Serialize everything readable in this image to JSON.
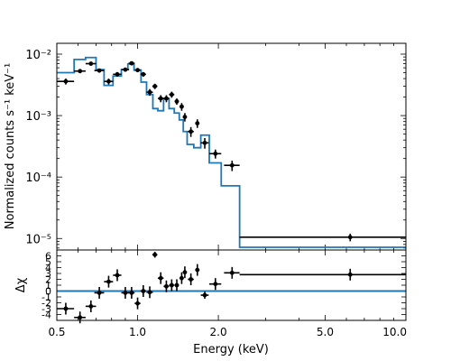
{
  "chart_data": [
    {
      "panel": "spectrum",
      "type": "scatter",
      "ylabel": "Normalized counts s⁻¹ keV⁻¹",
      "xscale": "log",
      "yscale": "log",
      "xlim": [
        0.5,
        10.0
      ],
      "ylim": [
        6.5e-06,
        0.015
      ],
      "ytick_labels": [
        "10⁻²",
        "10⁻³",
        "10⁻⁴",
        "10⁻⁵"
      ],
      "ytick_values": [
        0.01,
        0.001,
        0.0001,
        1e-05
      ],
      "data_color": "#000000",
      "model_color": "#1f77b4",
      "series": [
        {
          "kind": "data",
          "points": [
            {
              "x": 0.54,
              "xerr": [
                0.04,
                0.04
              ],
              "y": 0.0036,
              "yerr": [
                0.0004,
                0.0004
              ]
            },
            {
              "x": 0.61,
              "xerr": [
                0.03,
                0.03
              ],
              "y": 0.0053,
              "yerr": [
                0.0004,
                0.0004
              ]
            },
            {
              "x": 0.67,
              "xerr": [
                0.03,
                0.03
              ],
              "y": 0.007,
              "yerr": [
                0.0005,
                0.0005
              ]
            },
            {
              "x": 0.72,
              "xerr": [
                0.03,
                0.03
              ],
              "y": 0.0054,
              "yerr": [
                0.0004,
                0.0004
              ]
            },
            {
              "x": 0.78,
              "xerr": [
                0.03,
                0.03
              ],
              "y": 0.0036,
              "yerr": [
                0.0004,
                0.0004
              ]
            },
            {
              "x": 0.84,
              "xerr": [
                0.03,
                0.03
              ],
              "y": 0.0047,
              "yerr": [
                0.0004,
                0.0004
              ]
            },
            {
              "x": 0.9,
              "xerr": [
                0.03,
                0.03
              ],
              "y": 0.0056,
              "yerr": [
                0.0004,
                0.0004
              ]
            },
            {
              "x": 0.95,
              "xerr": [
                0.025,
                0.025
              ],
              "y": 0.0071,
              "yerr": [
                0.0005,
                0.0005
              ]
            },
            {
              "x": 1.0,
              "xerr": [
                0.025,
                0.025
              ],
              "y": 0.0055,
              "yerr": [
                0.0004,
                0.0004
              ]
            },
            {
              "x": 1.05,
              "xerr": [
                0.025,
                0.025
              ],
              "y": 0.0047,
              "yerr": [
                0.0004,
                0.0004
              ]
            },
            {
              "x": 1.11,
              "xerr": [
                0.03,
                0.03
              ],
              "y": 0.0024,
              "yerr": [
                0.0003,
                0.0003
              ]
            },
            {
              "x": 1.16,
              "xerr": [
                0.025,
                0.025
              ],
              "y": 0.003,
              "yerr": [
                0.0003,
                0.0003
              ]
            },
            {
              "x": 1.22,
              "xerr": [
                0.03,
                0.03
              ],
              "y": 0.0019,
              "yerr": [
                0.00025,
                0.00025
              ]
            },
            {
              "x": 1.28,
              "xerr": [
                0.03,
                0.03
              ],
              "y": 0.0019,
              "yerr": [
                0.00025,
                0.00025
              ]
            },
            {
              "x": 1.34,
              "xerr": [
                0.03,
                0.03
              ],
              "y": 0.0022,
              "yerr": [
                0.00025,
                0.00025
              ]
            },
            {
              "x": 1.4,
              "xerr": [
                0.025,
                0.025
              ],
              "y": 0.0017,
              "yerr": [
                0.0002,
                0.0002
              ]
            },
            {
              "x": 1.46,
              "xerr": [
                0.025,
                0.025
              ],
              "y": 0.0014,
              "yerr": [
                0.0002,
                0.0002
              ]
            },
            {
              "x": 1.5,
              "xerr": [
                0.025,
                0.025
              ],
              "y": 0.00095,
              "yerr": [
                0.00015,
                0.00015
              ]
            },
            {
              "x": 1.58,
              "xerr": [
                0.04,
                0.04
              ],
              "y": 0.00055,
              "yerr": [
                0.0001,
                0.0001
              ]
            },
            {
              "x": 1.67,
              "xerr": [
                0.03,
                0.03
              ],
              "y": 0.00075,
              "yerr": [
                0.00012,
                0.00012
              ]
            },
            {
              "x": 1.78,
              "xerr": [
                0.06,
                0.06
              ],
              "y": 0.00036,
              "yerr": [
                7e-05,
                7e-05
              ]
            },
            {
              "x": 1.95,
              "xerr": [
                0.1,
                0.1
              ],
              "y": 0.00024,
              "yerr": [
                4e-05,
                4e-05
              ]
            },
            {
              "x": 2.25,
              "xerr": [
                0.15,
                0.15
              ],
              "y": 0.000155,
              "yerr": [
                3e-05,
                3e-05
              ]
            },
            {
              "x": 6.2,
              "xerr": [
                3.8,
                3.8
              ],
              "y": 1.05e-05,
              "yerr": [
                1.5e-06,
                1.5e-06
              ]
            }
          ]
        },
        {
          "kind": "model-step",
          "edges": [
            0.5,
            0.58,
            0.64,
            0.7,
            0.75,
            0.81,
            0.87,
            0.92,
            0.97,
            1.03,
            1.08,
            1.14,
            1.19,
            1.25,
            1.31,
            1.37,
            1.43,
            1.48,
            1.53,
            1.62,
            1.72,
            1.85,
            2.05,
            2.4,
            10.0
          ],
          "values": [
            0.005,
            0.0082,
            0.0088,
            0.0056,
            0.0031,
            0.0044,
            0.0056,
            0.0069,
            0.0055,
            0.0035,
            0.0022,
            0.0013,
            0.0012,
            0.0019,
            0.0013,
            0.0011,
            0.00085,
            0.00055,
            0.00034,
            0.0003,
            0.00048,
            0.00017,
            7.2e-05,
            6.5e-06
          ]
        }
      ]
    },
    {
      "panel": "residuals",
      "type": "scatter",
      "xlabel": "Energy (keV)",
      "ylabel": "Δχ",
      "xscale": "log",
      "xlim": [
        0.5,
        10.0
      ],
      "ylim": [
        -5,
        7
      ],
      "ytick_values": [
        -4,
        -3,
        -2,
        -1,
        0,
        1,
        2,
        3,
        4,
        5,
        6
      ],
      "xtick_values": [
        0.5,
        1.0,
        2.0,
        5.0,
        10.0
      ],
      "xtick_labels": [
        "0.5",
        "1.0",
        "2.0",
        "5.0",
        "10.0"
      ],
      "zero_line": 0,
      "series": [
        {
          "kind": "data",
          "points": [
            {
              "x": 0.54,
              "xerr": [
                0.04,
                0.04
              ],
              "y": -3.0,
              "yerr": [
                1,
                1
              ]
            },
            {
              "x": 0.61,
              "xerr": [
                0.03,
                0.03
              ],
              "y": -4.5,
              "yerr": [
                1,
                1
              ]
            },
            {
              "x": 0.67,
              "xerr": [
                0.03,
                0.03
              ],
              "y": -2.6,
              "yerr": [
                1,
                1
              ]
            },
            {
              "x": 0.72,
              "xerr": [
                0.03,
                0.03
              ],
              "y": -0.3,
              "yerr": [
                1,
                1
              ]
            },
            {
              "x": 0.78,
              "xerr": [
                0.03,
                0.03
              ],
              "y": 1.6,
              "yerr": [
                1,
                1
              ]
            },
            {
              "x": 0.84,
              "xerr": [
                0.03,
                0.03
              ],
              "y": 2.7,
              "yerr": [
                1,
                1
              ]
            },
            {
              "x": 0.9,
              "xerr": [
                0.03,
                0.03
              ],
              "y": -0.3,
              "yerr": [
                1,
                1
              ]
            },
            {
              "x": 0.95,
              "xerr": [
                0.025,
                0.025
              ],
              "y": -0.3,
              "yerr": [
                1,
                1
              ]
            },
            {
              "x": 1.0,
              "xerr": [
                0.025,
                0.025
              ],
              "y": -2.1,
              "yerr": [
                1,
                1
              ]
            },
            {
              "x": 1.05,
              "xerr": [
                0.025,
                0.025
              ],
              "y": 0.0,
              "yerr": [
                1,
                1
              ]
            },
            {
              "x": 1.11,
              "xerr": [
                0.03,
                0.03
              ],
              "y": -0.2,
              "yerr": [
                1,
                1
              ]
            },
            {
              "x": 1.16,
              "xerr": [
                0.025,
                0.025
              ],
              "y": 6.2,
              "yerr": [
                0.5,
                0.5
              ]
            },
            {
              "x": 1.22,
              "xerr": [
                0.03,
                0.03
              ],
              "y": 2.2,
              "yerr": [
                1,
                1
              ]
            },
            {
              "x": 1.28,
              "xerr": [
                0.03,
                0.03
              ],
              "y": 0.8,
              "yerr": [
                1,
                1
              ]
            },
            {
              "x": 1.34,
              "xerr": [
                0.03,
                0.03
              ],
              "y": 1.0,
              "yerr": [
                1,
                1
              ]
            },
            {
              "x": 1.4,
              "xerr": [
                0.025,
                0.025
              ],
              "y": 1.0,
              "yerr": [
                1,
                1
              ]
            },
            {
              "x": 1.46,
              "xerr": [
                0.025,
                0.025
              ],
              "y": 2.2,
              "yerr": [
                1,
                1
              ]
            },
            {
              "x": 1.5,
              "xerr": [
                0.025,
                0.025
              ],
              "y": 3.2,
              "yerr": [
                1,
                1
              ]
            },
            {
              "x": 1.58,
              "xerr": [
                0.04,
                0.04
              ],
              "y": 2.0,
              "yerr": [
                1,
                1
              ]
            },
            {
              "x": 1.67,
              "xerr": [
                0.03,
                0.03
              ],
              "y": 3.6,
              "yerr": [
                1,
                1
              ]
            },
            {
              "x": 1.78,
              "xerr": [
                0.06,
                0.06
              ],
              "y": -0.7,
              "yerr": [
                0.6,
                0.6
              ]
            },
            {
              "x": 1.95,
              "xerr": [
                0.1,
                0.1
              ],
              "y": 1.2,
              "yerr": [
                1,
                1
              ]
            },
            {
              "x": 2.25,
              "xerr": [
                0.15,
                0.15
              ],
              "y": 3.1,
              "yerr": [
                1,
                1
              ]
            },
            {
              "x": 6.2,
              "xerr": [
                3.8,
                3.8
              ],
              "y": 2.8,
              "yerr": [
                1,
                1
              ]
            }
          ]
        }
      ]
    }
  ]
}
